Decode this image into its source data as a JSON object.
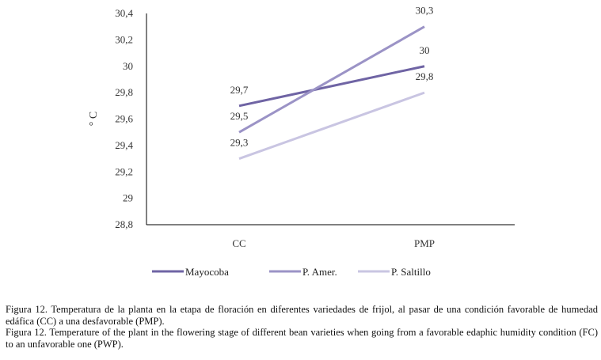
{
  "chart_data": {
    "type": "line",
    "categories": [
      "CC",
      "PMP"
    ],
    "series": [
      {
        "name": "Mayocoba",
        "values": [
          29.7,
          30.0
        ],
        "labels": [
          "29,7",
          "30"
        ],
        "color": "#6f64a4"
      },
      {
        "name": "P. Amer.",
        "values": [
          29.5,
          30.3
        ],
        "labels": [
          "29,5",
          "30,3"
        ],
        "color": "#9b93c6"
      },
      {
        "name": "P. Saltillo",
        "values": [
          29.3,
          29.8
        ],
        "labels": [
          "29,3",
          "29,8"
        ],
        "color": "#c9c5e2"
      }
    ],
    "ylabel": "° C",
    "ylim": [
      28.8,
      30.4
    ],
    "yticks": [
      "28,8",
      "29",
      "29,2",
      "29,4",
      "29,6",
      "29,8",
      "30",
      "30,2",
      "30,4"
    ],
    "ytick_values": [
      28.8,
      29.0,
      29.2,
      29.4,
      29.6,
      29.8,
      30.0,
      30.2,
      30.4
    ],
    "legend_position": "bottom"
  },
  "caption": {
    "es": "Figura 12. Temperatura de la planta en la etapa de floración en diferentes variedades de frijol, al pasar de una condición favorable de humedad edáfica (CC) a una desfavorable (PMP).",
    "en": "Figura 12. Temperature of the plant in the flowering stage of different bean varieties when going from a favorable edaphic humidity condition (FC) to an unfavorable one (PWP)."
  }
}
